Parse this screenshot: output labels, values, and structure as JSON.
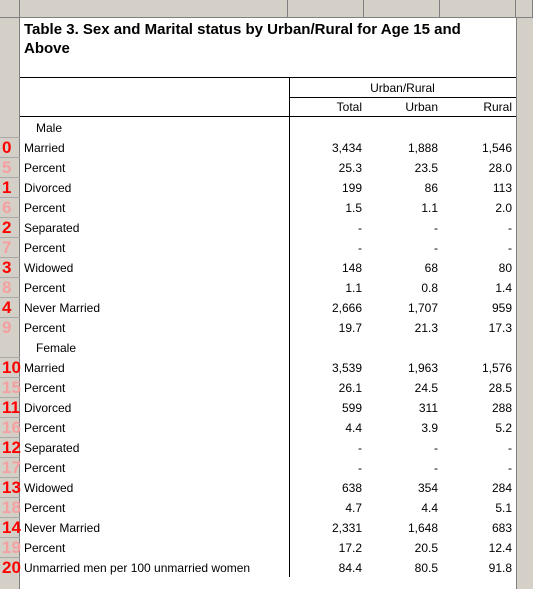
{
  "title": "Table 3. Sex and Marital status by Urban/Rural for Age 15 and Above",
  "header": {
    "group": "Urban/Rural",
    "total": "Total",
    "urban": "Urban",
    "rural": "Rural"
  },
  "sections": {
    "male": "Male",
    "female": "Female"
  },
  "gutter": [
    "0",
    "5",
    "1",
    "6",
    "2",
    "7",
    "3",
    "8",
    "4",
    "9",
    "10",
    "15",
    "11",
    "16",
    "12",
    "17",
    "13",
    "18",
    "14",
    "19",
    "20"
  ],
  "rows": [
    {
      "label": "Married",
      "total": "3,434",
      "urban": "1,888",
      "rural": "1,546"
    },
    {
      "label": "Percent",
      "total": "25.3",
      "urban": "23.5",
      "rural": "28.0"
    },
    {
      "label": "Divorced",
      "total": "199",
      "urban": "86",
      "rural": "113"
    },
    {
      "label": "Percent",
      "total": "1.5",
      "urban": "1.1",
      "rural": "2.0"
    },
    {
      "label": "Separated",
      "total": "-",
      "urban": "-",
      "rural": "-"
    },
    {
      "label": "Percent",
      "total": "-",
      "urban": "-",
      "rural": "-"
    },
    {
      "label": "Widowed",
      "total": "148",
      "urban": "68",
      "rural": "80"
    },
    {
      "label": "Percent",
      "total": "1.1",
      "urban": "0.8",
      "rural": "1.4"
    },
    {
      "label": "Never Married",
      "total": "2,666",
      "urban": "1,707",
      "rural": "959"
    },
    {
      "label": "Percent",
      "total": "19.7",
      "urban": "21.3",
      "rural": "17.3"
    },
    {
      "label": "Married",
      "total": "3,539",
      "urban": "1,963",
      "rural": "1,576"
    },
    {
      "label": "Percent",
      "total": "26.1",
      "urban": "24.5",
      "rural": "28.5"
    },
    {
      "label": "Divorced",
      "total": "599",
      "urban": "311",
      "rural": "288"
    },
    {
      "label": "Percent",
      "total": "4.4",
      "urban": "3.9",
      "rural": "5.2"
    },
    {
      "label": "Separated",
      "total": "-",
      "urban": "-",
      "rural": "-"
    },
    {
      "label": "Percent",
      "total": "-",
      "urban": "-",
      "rural": "-"
    },
    {
      "label": "Widowed",
      "total": "638",
      "urban": "354",
      "rural": "284"
    },
    {
      "label": "Percent",
      "total": "4.7",
      "urban": "4.4",
      "rural": "5.1"
    },
    {
      "label": "Never Married",
      "total": "2,331",
      "urban": "1,648",
      "rural": "683"
    },
    {
      "label": "Percent",
      "total": "17.2",
      "urban": "20.5",
      "rural": "12.4"
    },
    {
      "label": "Unmarried men per 100 unmarried women",
      "total": "84.4",
      "urban": "80.5",
      "rural": "91.8"
    }
  ]
}
